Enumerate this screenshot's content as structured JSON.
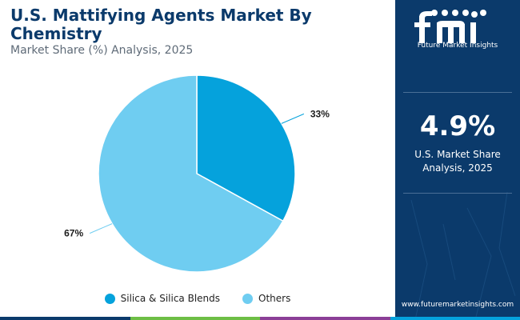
{
  "title": "U.S. Mattifying Agents Market By Chemistry",
  "subtitle": "Market Share (%) Analysis, 2025",
  "chart_data": {
    "type": "pie",
    "title": "U.S. Mattifying Agents Market By Chemistry",
    "subtitle": "Market Share (%) Analysis, 2025",
    "categories": [
      "Silica & Silica Blends",
      "Others"
    ],
    "values": [
      33,
      67
    ],
    "labels": [
      "33%",
      "67%"
    ],
    "colors": [
      "#05a2dc",
      "#6fcdf1"
    ],
    "legend": "bottom"
  },
  "legend": [
    {
      "label": "Silica & Silica Blends",
      "color": "#05a2dc"
    },
    {
      "label": "Others",
      "color": "#6fcdf1"
    }
  ],
  "sidebar": {
    "logo_text": "Future Market Insights",
    "stat_value": "4.9%",
    "stat_label": "U.S. Market Share Analysis, 2025",
    "website": "www.futuremarketinsights.com"
  },
  "colors": {
    "title": "#0b3a6b",
    "sidebar_bg": "#0b3a6b",
    "bottom_bar": [
      "#0b3a6b",
      "#6dbe45",
      "#8b3f97",
      "#05a2dc"
    ]
  }
}
